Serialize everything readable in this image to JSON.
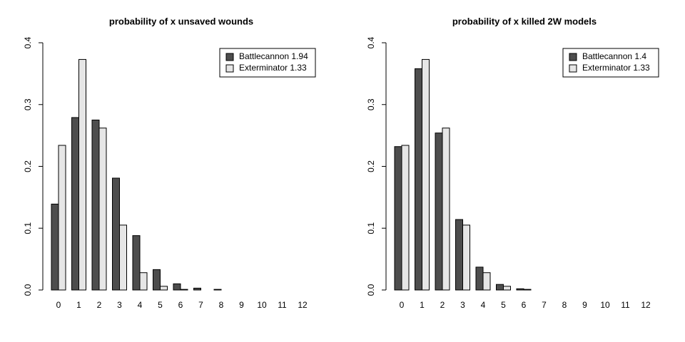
{
  "chart_data": [
    {
      "type": "bar",
      "title": "probability of x unsaved wounds",
      "categories": [
        "0",
        "1",
        "2",
        "3",
        "4",
        "5",
        "6",
        "7",
        "8",
        "9",
        "10",
        "11",
        "12"
      ],
      "series": [
        {
          "name": "Battlecannon 1.94",
          "color": "#4d4d4d",
          "values": [
            0.139,
            0.279,
            0.275,
            0.181,
            0.088,
            0.033,
            0.01,
            0.003,
            0.001,
            0,
            0,
            0,
            0
          ]
        },
        {
          "name": "Exterminator 1.33",
          "color": "#e6e6e6",
          "values": [
            0.234,
            0.373,
            0.262,
            0.105,
            0.028,
            0.006,
            0.001,
            0,
            0,
            0,
            0,
            0,
            0
          ]
        }
      ],
      "ylim": [
        0,
        0.4
      ],
      "yticks": [
        {
          "value": 0,
          "label": "0.0"
        },
        0.1,
        0.2,
        0.3,
        0.4
      ],
      "legend": "topright"
    },
    {
      "type": "bar",
      "title": "probability of x killed 2W models",
      "categories": [
        "0",
        "1",
        "2",
        "3",
        "4",
        "5",
        "6",
        "7",
        "8",
        "9",
        "10",
        "11",
        "12"
      ],
      "series": [
        {
          "name": "Battlecannon 1.4",
          "color": "#4d4d4d",
          "values": [
            0.232,
            0.358,
            0.254,
            0.114,
            0.037,
            0.009,
            0.002,
            0,
            0,
            0,
            0,
            0,
            0
          ]
        },
        {
          "name": "Exterminator 1.33",
          "color": "#e6e6e6",
          "values": [
            0.234,
            0.373,
            0.262,
            0.105,
            0.028,
            0.006,
            0.001,
            0,
            0,
            0,
            0,
            0,
            0
          ]
        }
      ],
      "ylim": [
        0,
        0.4
      ],
      "yticks": [
        {
          "value": 0,
          "label": "0.0"
        },
        0.1,
        0.2,
        0.3,
        0.4
      ],
      "legend": "topright"
    }
  ]
}
